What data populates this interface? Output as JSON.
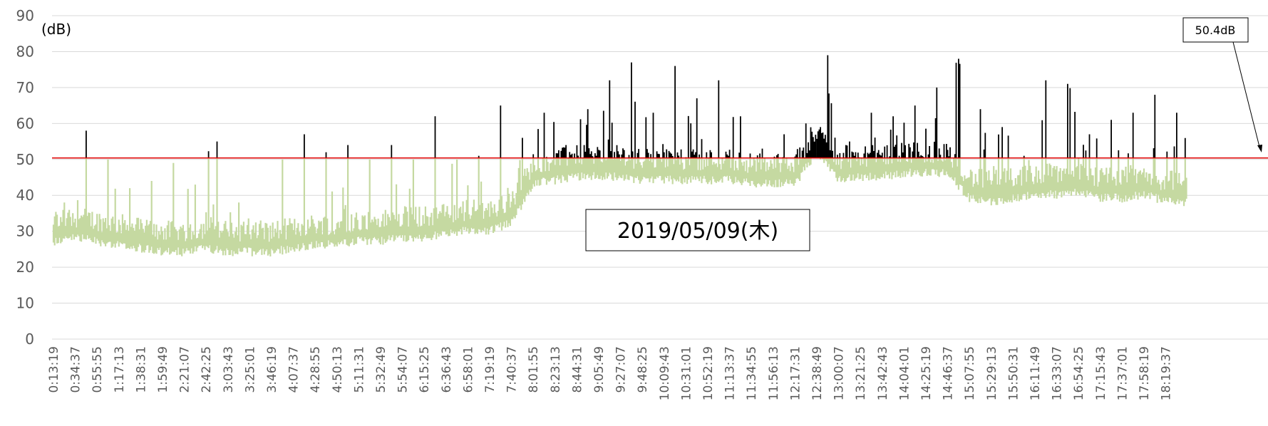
{
  "chart_data": {
    "type": "area",
    "ylabel": "(dB)",
    "ylim": [
      0,
      90
    ],
    "yticks": [
      "0",
      "10",
      "20",
      "30",
      "40",
      "50",
      "60",
      "70",
      "80",
      "90"
    ],
    "threshold": {
      "value": 50.4,
      "label": "50.4dB",
      "color": "#e00000"
    },
    "date_label": "2019/05/09(木)",
    "categories": [
      "0:13:19",
      "0:34:37",
      "0:55:55",
      "1:17:13",
      "1:38:31",
      "1:59:49",
      "2:21:07",
      "2:42:25",
      "3:03:43",
      "3:25:01",
      "3:46:19",
      "4:07:37",
      "4:28:55",
      "4:50:13",
      "5:11:31",
      "5:32:49",
      "5:54:07",
      "6:15:25",
      "6:36:43",
      "6:58:01",
      "7:19:19",
      "7:40:37",
      "8:01:55",
      "8:23:13",
      "8:44:31",
      "9:05:49",
      "9:27:07",
      "9:48:25",
      "10:09:43",
      "10:31:01",
      "10:52:19",
      "11:13:37",
      "11:34:55",
      "11:56:13",
      "12:17:31",
      "12:38:49",
      "13:00:07",
      "13:21:25",
      "13:42:43",
      "14:04:01",
      "14:25:19",
      "14:46:37",
      "15:07:55",
      "15:29:13",
      "15:50:31",
      "16:11:49",
      "16:33:07",
      "16:54:25",
      "17:15:43",
      "17:37:01",
      "17:58:19",
      "18:19:37"
    ],
    "series": [
      {
        "values": [
          {
            "x": "0:13:19",
            "base": 30,
            "peak": 38
          },
          {
            "x": "0:34:37",
            "base": 31,
            "peak": 58
          },
          {
            "x": "0:55:55",
            "base": 30,
            "peak": 50
          },
          {
            "x": "1:17:13",
            "base": 29,
            "peak": 42
          },
          {
            "x": "1:38:31",
            "base": 28,
            "peak": 44
          },
          {
            "x": "1:59:49",
            "base": 27,
            "peak": 49
          },
          {
            "x": "2:21:07",
            "base": 27,
            "peak": 43
          },
          {
            "x": "2:42:25",
            "base": 28,
            "peak": 55
          },
          {
            "x": "3:03:43",
            "base": 27,
            "peak": 38
          },
          {
            "x": "3:25:01",
            "base": 27,
            "peak": 33
          },
          {
            "x": "3:46:19",
            "base": 27,
            "peak": 50
          },
          {
            "x": "4:07:37",
            "base": 28,
            "peak": 57
          },
          {
            "x": "4:28:55",
            "base": 29,
            "peak": 52
          },
          {
            "x": "4:50:13",
            "base": 29,
            "peak": 54
          },
          {
            "x": "5:11:31",
            "base": 30,
            "peak": 50
          },
          {
            "x": "5:32:49",
            "base": 30,
            "peak": 54
          },
          {
            "x": "5:54:07",
            "base": 31,
            "peak": 50
          },
          {
            "x": "6:15:25",
            "base": 31,
            "peak": 62
          },
          {
            "x": "6:36:43",
            "base": 32,
            "peak": 50
          },
          {
            "x": "6:58:01",
            "base": 33,
            "peak": 51
          },
          {
            "x": "7:19:19",
            "base": 33,
            "peak": 65
          },
          {
            "x": "7:40:37",
            "base": 35,
            "peak": 56
          },
          {
            "x": "8:01:55",
            "base": 46,
            "peak": 63
          },
          {
            "x": "8:23:13",
            "base": 47,
            "peak": 54
          },
          {
            "x": "8:44:31",
            "base": 48,
            "peak": 64
          },
          {
            "x": "9:05:49",
            "base": 48,
            "peak": 72
          },
          {
            "x": "9:27:07",
            "base": 48,
            "peak": 77
          },
          {
            "x": "9:48:25",
            "base": 47,
            "peak": 63
          },
          {
            "x": "10:09:43",
            "base": 47,
            "peak": 76
          },
          {
            "x": "10:31:01",
            "base": 47,
            "peak": 67
          },
          {
            "x": "10:52:19",
            "base": 47,
            "peak": 72
          },
          {
            "x": "11:13:37",
            "base": 47,
            "peak": 62
          },
          {
            "x": "11:34:55",
            "base": 46,
            "peak": 53
          },
          {
            "x": "11:56:13",
            "base": 46,
            "peak": 57
          },
          {
            "x": "12:17:31",
            "base": 46,
            "peak": 60
          },
          {
            "x": "12:38:49",
            "base": 55,
            "peak": 79
          },
          {
            "x": "13:00:07",
            "base": 47,
            "peak": 55
          },
          {
            "x": "13:21:25",
            "base": 48,
            "peak": 63
          },
          {
            "x": "13:42:43",
            "base": 48,
            "peak": 62
          },
          {
            "x": "14:04:01",
            "base": 49,
            "peak": 65
          },
          {
            "x": "14:25:19",
            "base": 49,
            "peak": 70
          },
          {
            "x": "14:46:37",
            "base": 49,
            "peak": 78
          },
          {
            "x": "15:07:55",
            "base": 42,
            "peak": 64
          },
          {
            "x": "15:29:13",
            "base": 41,
            "peak": 59
          },
          {
            "x": "15:50:31",
            "base": 42,
            "peak": 51
          },
          {
            "x": "16:11:49",
            "base": 43,
            "peak": 72
          },
          {
            "x": "16:33:07",
            "base": 43,
            "peak": 71
          },
          {
            "x": "16:54:25",
            "base": 44,
            "peak": 57
          },
          {
            "x": "17:15:43",
            "base": 42,
            "peak": 61
          },
          {
            "x": "17:37:01",
            "base": 42,
            "peak": 63
          },
          {
            "x": "17:58:19",
            "base": 43,
            "peak": 68
          },
          {
            "x": "18:19:37",
            "base": 41,
            "peak": 63
          }
        ],
        "colors": {
          "below": "#c5d9a1",
          "above": "#000000"
        }
      }
    ],
    "grid": true,
    "legend": "none"
  }
}
